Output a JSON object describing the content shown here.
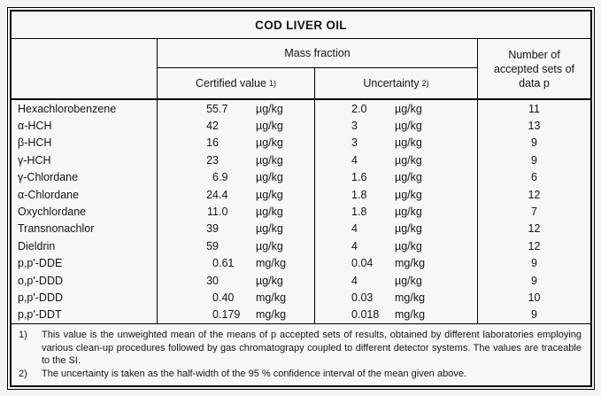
{
  "title": "COD LIVER OIL",
  "table": {
    "headers": {
      "mass_fraction": "Mass fraction",
      "certified_value": "Certified value",
      "certified_footnote_ref": "1)",
      "uncertainty": "Uncertainty",
      "uncertainty_footnote_ref": "2)",
      "accepted_sets": "Number of accepted sets of data p"
    },
    "rows": [
      {
        "analyte": "Hexachlorobenzene",
        "certified": "55.7",
        "certified_unit": "µg/kg",
        "uncertainty": "2.0",
        "uncertainty_unit": "µg/kg",
        "p": "11"
      },
      {
        "analyte": "α-HCH",
        "certified": "42",
        "certified_unit": "µg/kg",
        "uncertainty": "3",
        "uncertainty_unit": "µg/kg",
        "p": "13"
      },
      {
        "analyte": "β-HCH",
        "certified": "16",
        "certified_unit": "µg/kg",
        "uncertainty": "3",
        "uncertainty_unit": "µg/kg",
        "p": "9"
      },
      {
        "analyte": "γ-HCH",
        "certified": "23",
        "certified_unit": "µg/kg",
        "uncertainty": "4",
        "uncertainty_unit": "µg/kg",
        "p": "9"
      },
      {
        "analyte": "γ-Chlordane",
        "certified": "6.9",
        "certified_unit": "µg/kg",
        "uncertainty": "1.6",
        "uncertainty_unit": "µg/kg",
        "p": "6"
      },
      {
        "analyte": "α-Chlordane",
        "certified": "24.4",
        "certified_unit": "µg/kg",
        "uncertainty": "1.8",
        "uncertainty_unit": "µg/kg",
        "p": "12"
      },
      {
        "analyte": "Oxychlordane",
        "certified": "11.0",
        "certified_unit": "µg/kg",
        "uncertainty": "1.8",
        "uncertainty_unit": "µg/kg",
        "p": "7"
      },
      {
        "analyte": "Transnonachlor",
        "certified": "39",
        "certified_unit": "µg/kg",
        "uncertainty": "4",
        "uncertainty_unit": "µg/kg",
        "p": "12"
      },
      {
        "analyte": "Dieldrin",
        "certified": "59",
        "certified_unit": "µg/kg",
        "uncertainty": "4",
        "uncertainty_unit": "µg/kg",
        "p": "12"
      },
      {
        "analyte": "p,p'-DDE",
        "certified": "0.61",
        "certified_unit": "mg/kg",
        "uncertainty": "0.04",
        "uncertainty_unit": "mg/kg",
        "p": "9"
      },
      {
        "analyte": "o,p'-DDD",
        "certified": "30",
        "certified_unit": "µg/kg",
        "uncertainty": "4",
        "uncertainty_unit": "µg/kg",
        "p": "9"
      },
      {
        "analyte": "p,p'-DDD",
        "certified": "0.40",
        "certified_unit": "mg/kg",
        "uncertainty": "0.03",
        "uncertainty_unit": "mg/kg",
        "p": "10"
      },
      {
        "analyte": "p,p'-DDT",
        "certified": "0.179",
        "certified_unit": "mg/kg",
        "uncertainty": "0.018",
        "uncertainty_unit": "mg/kg",
        "p": "9"
      }
    ]
  },
  "footnotes": [
    {
      "label": "1)",
      "text": "This value is the unweighted mean of the means of p accepted sets of results, obtained by different laboratories employing various clean-up procedures followed by gas chromatograpy coupled to different detector systems. The values are traceable to the SI."
    },
    {
      "label": "2)",
      "text": "The uncertainty is taken as the half-width of the 95 % confidence interval of the mean given above."
    }
  ],
  "colors": {
    "border": "#000000",
    "page_background": "#f4f4f4",
    "table_background": "#f7f7f7",
    "text": "#141414"
  }
}
